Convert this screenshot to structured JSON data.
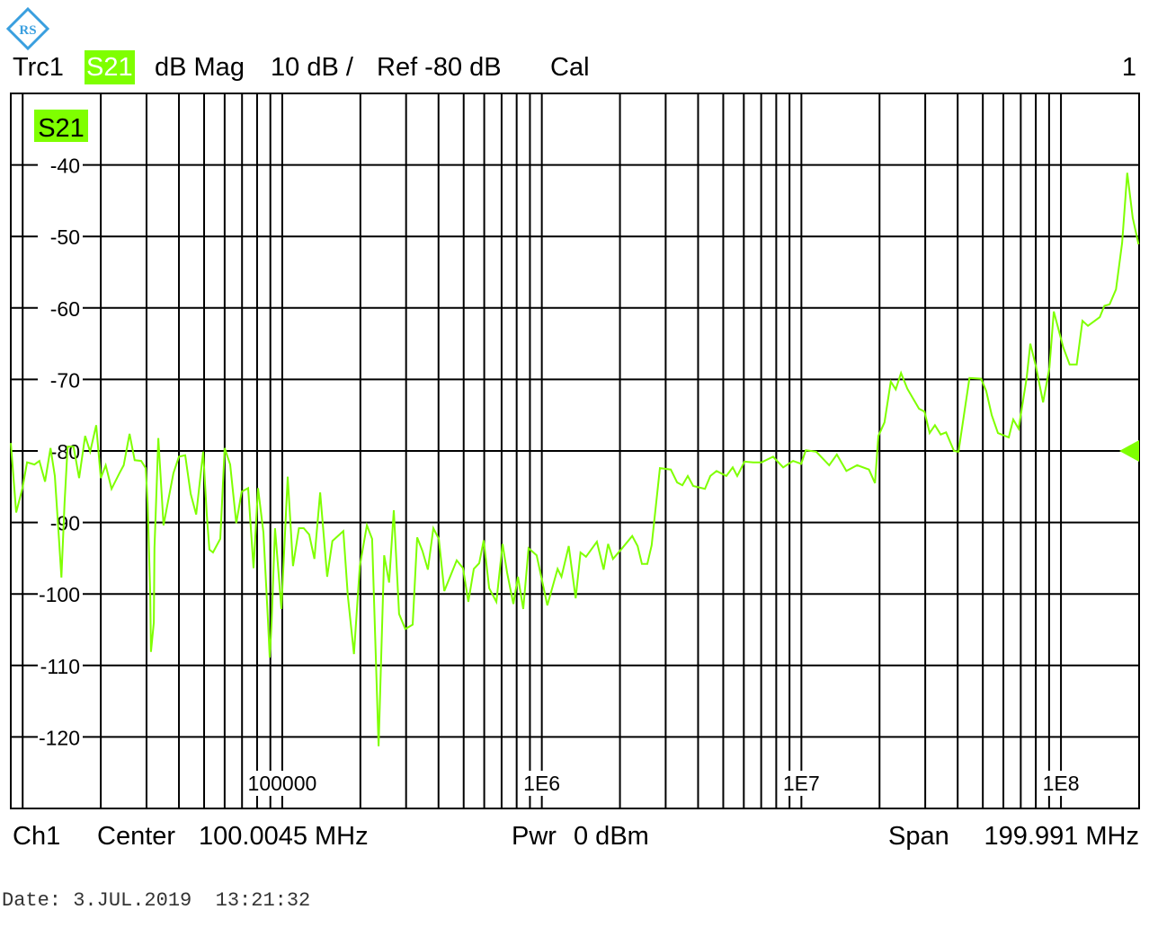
{
  "logo": {
    "text": "R&S",
    "color": "#3a9fdf"
  },
  "header": {
    "trace": "Trc1",
    "parameter": "S21",
    "format": "dB Mag",
    "scale": "10 dB /",
    "reference": "Ref -80 dB",
    "cal": "Cal",
    "window_number": "1"
  },
  "footer": {
    "channel": "Ch1",
    "center_label": "Center",
    "center_value": "100.0045 MHz",
    "power_label": "Pwr",
    "power_value": "0 dBm",
    "span_label": "Span",
    "span_value": "199.991 MHz",
    "date": "Date: 3.JUL.2019  13:21:32"
  },
  "colors": {
    "trace": "#7fff00",
    "grid": "#000000",
    "background": "#ffffff"
  },
  "chart_data": {
    "type": "line",
    "x_scale": "log",
    "xlim": [
      9000,
      200000000
    ],
    "ylim": [
      -130,
      -30
    ],
    "grid": true,
    "yticks": [
      -40,
      -50,
      -60,
      -70,
      -80,
      -90,
      -100,
      -110,
      -120
    ],
    "ytick_labels": [
      "-40",
      "-50",
      "-60",
      "-70",
      "-80",
      "-90",
      "-100",
      "-110",
      "-120"
    ],
    "xticks": [
      100000,
      1000000,
      10000000,
      100000000
    ],
    "xtick_labels": [
      "100000",
      "1E6",
      "1E7",
      "1E8"
    ],
    "legend": "S21",
    "reference_marker_db": -80,
    "series": [
      {
        "name": "S21",
        "points": [
          [
            9000,
            -78.9
          ],
          [
            9140,
            -81.9
          ],
          [
            9440,
            -88.6
          ],
          [
            9980,
            -85.2
          ],
          [
            10400,
            -81.6
          ],
          [
            11100,
            -81.9
          ],
          [
            11600,
            -81.4
          ],
          [
            12200,
            -84.3
          ],
          [
            12800,
            -79.6
          ],
          [
            13300,
            -83.5
          ],
          [
            13800,
            -92.3
          ],
          [
            14100,
            -97.7
          ],
          [
            14500,
            -87.3
          ],
          [
            14900,
            -79.4
          ],
          [
            15700,
            -79.4
          ],
          [
            16500,
            -83.8
          ],
          [
            17400,
            -77.9
          ],
          [
            18200,
            -80.1
          ],
          [
            19200,
            -76.4
          ],
          [
            20000,
            -83.8
          ],
          [
            20900,
            -82.0
          ],
          [
            22000,
            -85.3
          ],
          [
            23600,
            -83.1
          ],
          [
            24500,
            -82.0
          ],
          [
            25800,
            -77.6
          ],
          [
            27000,
            -81.3
          ],
          [
            28600,
            -81.4
          ],
          [
            29800,
            -82.4
          ],
          [
            30300,
            -87.3
          ],
          [
            31000,
            -99.9
          ],
          [
            31200,
            -108.1
          ],
          [
            32000,
            -104.0
          ],
          [
            32200,
            -93.6
          ],
          [
            32500,
            -89.4
          ],
          [
            33300,
            -78.2
          ],
          [
            34900,
            -90.4
          ],
          [
            36600,
            -86.4
          ],
          [
            38100,
            -83.1
          ],
          [
            40000,
            -80.8
          ],
          [
            42300,
            -80.6
          ],
          [
            44400,
            -86.0
          ],
          [
            46600,
            -88.9
          ],
          [
            49600,
            -80.1
          ],
          [
            51200,
            -88.9
          ],
          [
            52400,
            -93.8
          ],
          [
            54100,
            -94.2
          ],
          [
            57700,
            -92.3
          ],
          [
            60000,
            -79.6
          ],
          [
            63000,
            -81.9
          ],
          [
            66500,
            -90.1
          ],
          [
            69800,
            -85.7
          ],
          [
            73900,
            -85.2
          ],
          [
            77500,
            -96.4
          ],
          [
            80700,
            -85.2
          ],
          [
            84600,
            -91.4
          ],
          [
            88100,
            -103.6
          ],
          [
            89500,
            -108.9
          ],
          [
            91000,
            -104.0
          ],
          [
            93800,
            -90.8
          ],
          [
            99300,
            -102.1
          ],
          [
            105000,
            -83.6
          ],
          [
            110000,
            -96.1
          ],
          [
            116000,
            -90.8
          ],
          [
            121000,
            -90.8
          ],
          [
            127000,
            -91.7
          ],
          [
            133000,
            -95.1
          ],
          [
            140000,
            -85.8
          ],
          [
            149000,
            -97.6
          ],
          [
            156000,
            -92.6
          ],
          [
            172000,
            -91.2
          ],
          [
            179000,
            -100.3
          ],
          [
            189000,
            -108.4
          ],
          [
            199000,
            -96.1
          ],
          [
            212000,
            -90.4
          ],
          [
            222000,
            -92.3
          ],
          [
            235000,
            -121.3
          ],
          [
            247000,
            -94.6
          ],
          [
            258000,
            -98.4
          ],
          [
            269000,
            -88.3
          ],
          [
            282000,
            -102.8
          ],
          [
            298000,
            -104.9
          ],
          [
            318000,
            -104.3
          ],
          [
            331000,
            -92.1
          ],
          [
            347000,
            -94.0
          ],
          [
            364000,
            -96.6
          ],
          [
            382000,
            -90.8
          ],
          [
            401000,
            -92.3
          ],
          [
            421000,
            -99.6
          ],
          [
            470000,
            -95.3
          ],
          [
            497000,
            -96.4
          ],
          [
            521000,
            -101.1
          ],
          [
            547000,
            -96.5
          ],
          [
            574000,
            -95.7
          ],
          [
            597000,
            -92.5
          ],
          [
            627000,
            -99.2
          ],
          [
            668000,
            -101.1
          ],
          [
            706000,
            -93.0
          ],
          [
            735000,
            -97.0
          ],
          [
            777000,
            -101.4
          ],
          [
            809000,
            -97.6
          ],
          [
            848000,
            -102.1
          ],
          [
            889000,
            -93.6
          ],
          [
            955000,
            -94.6
          ],
          [
            1050000,
            -101.6
          ],
          [
            1150000,
            -96.5
          ],
          [
            1190000,
            -97.6
          ],
          [
            1270000,
            -93.3
          ],
          [
            1350000,
            -100.6
          ],
          [
            1410000,
            -94.2
          ],
          [
            1480000,
            -94.8
          ],
          [
            1630000,
            -92.7
          ],
          [
            1730000,
            -96.6
          ],
          [
            1800000,
            -93.0
          ],
          [
            1880000,
            -95.1
          ],
          [
            2040000,
            -93.6
          ],
          [
            2230000,
            -91.9
          ],
          [
            2340000,
            -93.3
          ],
          [
            2430000,
            -95.8
          ],
          [
            2550000,
            -95.8
          ],
          [
            2650000,
            -93.2
          ],
          [
            2850000,
            -82.4
          ],
          [
            3140000,
            -82.6
          ],
          [
            3320000,
            -84.4
          ],
          [
            3480000,
            -84.8
          ],
          [
            3650000,
            -83.5
          ],
          [
            3830000,
            -84.9
          ],
          [
            4250000,
            -85.3
          ],
          [
            4460000,
            -83.5
          ],
          [
            4710000,
            -82.8
          ],
          [
            5140000,
            -83.5
          ],
          [
            5440000,
            -82.3
          ],
          [
            5660000,
            -83.5
          ],
          [
            6040000,
            -81.5
          ],
          [
            6530000,
            -81.6
          ],
          [
            7020000,
            -81.6
          ],
          [
            7780000,
            -80.8
          ],
          [
            8510000,
            -82.3
          ],
          [
            9290000,
            -81.4
          ],
          [
            9980000,
            -81.8
          ],
          [
            10400000,
            -79.9
          ],
          [
            11400000,
            -80.1
          ],
          [
            12800000,
            -82.0
          ],
          [
            13700000,
            -80.5
          ],
          [
            14900000,
            -82.8
          ],
          [
            16400000,
            -82.0
          ],
          [
            18200000,
            -82.6
          ],
          [
            19200000,
            -84.5
          ],
          [
            19800000,
            -77.9
          ],
          [
            20900000,
            -76.0
          ],
          [
            22100000,
            -70.3
          ],
          [
            23100000,
            -71.4
          ],
          [
            24200000,
            -69.1
          ],
          [
            25600000,
            -71.3
          ],
          [
            28400000,
            -74.1
          ],
          [
            29800000,
            -74.5
          ],
          [
            31200000,
            -77.5
          ],
          [
            32700000,
            -76.4
          ],
          [
            34400000,
            -77.7
          ],
          [
            36100000,
            -77.4
          ],
          [
            38700000,
            -80.0
          ],
          [
            40300000,
            -80.1
          ],
          [
            44400000,
            -69.8
          ],
          [
            49200000,
            -69.9
          ],
          [
            51500000,
            -71.6
          ],
          [
            54100000,
            -75.0
          ],
          [
            57200000,
            -77.5
          ],
          [
            62900000,
            -78.1
          ],
          [
            65500000,
            -75.6
          ],
          [
            68700000,
            -76.9
          ],
          [
            73800000,
            -69.7
          ],
          [
            76200000,
            -65.0
          ],
          [
            80000000,
            -68.1
          ],
          [
            85300000,
            -73.2
          ],
          [
            90200000,
            -68.4
          ],
          [
            93800000,
            -60.5
          ],
          [
            102000000,
            -65.5
          ],
          [
            108000000,
            -67.9
          ],
          [
            115000000,
            -67.9
          ],
          [
            121000000,
            -61.8
          ],
          [
            127000000,
            -62.5
          ],
          [
            141000000,
            -61.3
          ],
          [
            147000000,
            -59.7
          ],
          [
            154000000,
            -59.5
          ],
          [
            163000000,
            -57.4
          ],
          [
            172000000,
            -50.9
          ],
          [
            180000000,
            -41.1
          ],
          [
            189000000,
            -47.4
          ],
          [
            199000000,
            -51.1
          ]
        ]
      }
    ]
  }
}
